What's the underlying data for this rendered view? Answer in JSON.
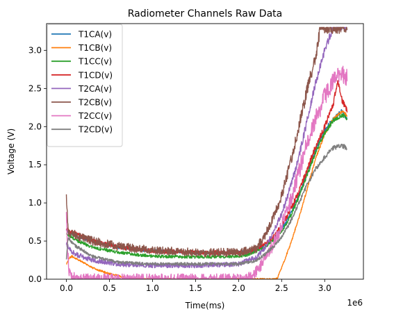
{
  "chart_data": {
    "type": "line",
    "title": "Radiometer Channels Raw Data",
    "xlabel": "Time(ms)",
    "ylabel": "Voltage (V)",
    "x_offset_text": "1e6",
    "xlim": [
      -230000,
      3450000
    ],
    "ylim": [
      0.0,
      3.35
    ],
    "x_ticks": [
      0.0,
      500000,
      1000000,
      1500000,
      2000000,
      2500000,
      3000000
    ],
    "x_tick_labels": [
      "0.0",
      "0.5",
      "1.0",
      "1.5",
      "2.0",
      "2.5",
      "3.0"
    ],
    "y_ticks": [
      0.0,
      0.5,
      1.0,
      1.5,
      2.0,
      2.5,
      3.0
    ],
    "y_tick_labels": [
      "0.0",
      "0.5",
      "1.0",
      "1.5",
      "2.0",
      "2.5",
      "3.0"
    ],
    "grid": false,
    "legend_position": "top-left",
    "series": [
      {
        "name": "T1CA(v)",
        "color": "#1f77b4",
        "noise": 0.03,
        "x": [
          0,
          20000,
          50000,
          100000,
          300000,
          600000,
          1000000,
          1500000,
          2000000,
          2100000,
          2200000,
          2300000,
          2400000,
          2500000,
          2600000,
          2700000,
          2800000,
          2900000,
          3000000,
          3100000,
          3200000,
          3260000
        ],
        "y": [
          0.65,
          0.62,
          0.6,
          0.58,
          0.5,
          0.42,
          0.37,
          0.35,
          0.35,
          0.36,
          0.39,
          0.44,
          0.52,
          0.65,
          0.85,
          1.1,
          1.4,
          1.7,
          1.95,
          2.1,
          2.2,
          2.1
        ]
      },
      {
        "name": "T1CB(v)",
        "color": "#ff7f0e",
        "noise": 0.02,
        "x": [
          0,
          10000,
          30000,
          60000,
          100000,
          200000,
          300000,
          500000,
          700000,
          900000,
          1500000,
          2000000,
          2200000,
          2300000,
          2400000,
          2450000,
          2500000,
          2600000,
          2700000,
          2800000,
          2900000,
          3000000,
          3100000,
          3200000,
          3260000
        ],
        "y": [
          0.2,
          0.22,
          0.27,
          0.3,
          0.28,
          0.22,
          0.15,
          0.07,
          0.02,
          0.0,
          0.0,
          0.0,
          0.0,
          0.0,
          0.0,
          0.01,
          0.15,
          0.45,
          0.8,
          1.2,
          1.6,
          1.9,
          2.1,
          2.2,
          2.15
        ]
      },
      {
        "name": "T1CC(v)",
        "color": "#2ca02c",
        "noise": 0.03,
        "x": [
          0,
          20000,
          50000,
          100000,
          300000,
          600000,
          1000000,
          1500000,
          2000000,
          2100000,
          2200000,
          2300000,
          2400000,
          2500000,
          2600000,
          2700000,
          2800000,
          2900000,
          3000000,
          3100000,
          3200000,
          3260000
        ],
        "y": [
          0.6,
          0.58,
          0.56,
          0.52,
          0.42,
          0.35,
          0.3,
          0.29,
          0.3,
          0.32,
          0.36,
          0.42,
          0.5,
          0.62,
          0.82,
          1.08,
          1.38,
          1.68,
          1.92,
          2.08,
          2.15,
          2.1
        ]
      },
      {
        "name": "T1CD(v)",
        "color": "#d62728",
        "noise": 0.04,
        "x": [
          0,
          20000,
          50000,
          100000,
          300000,
          600000,
          1000000,
          1500000,
          2000000,
          2100000,
          2200000,
          2300000,
          2400000,
          2500000,
          2600000,
          2700000,
          2800000,
          2900000,
          3000000,
          3100000,
          3150000,
          3200000,
          3260000
        ],
        "y": [
          0.65,
          0.64,
          0.62,
          0.6,
          0.5,
          0.42,
          0.37,
          0.35,
          0.35,
          0.36,
          0.4,
          0.46,
          0.55,
          0.7,
          0.9,
          1.15,
          1.45,
          1.75,
          2.0,
          2.3,
          2.6,
          2.35,
          2.2
        ]
      },
      {
        "name": "T2CA(v)",
        "color": "#9467bd",
        "noise": 0.05,
        "x": [
          0,
          20000,
          50000,
          100000,
          300000,
          600000,
          1000000,
          1500000,
          2000000,
          2200000,
          2300000,
          2400000,
          2500000,
          2600000,
          2700000,
          2800000,
          2900000,
          3000000,
          3100000,
          3200000,
          3260000
        ],
        "y": [
          0.45,
          0.43,
          0.38,
          0.33,
          0.25,
          0.2,
          0.18,
          0.18,
          0.2,
          0.28,
          0.4,
          0.6,
          0.85,
          1.2,
          1.6,
          2.1,
          2.6,
          3.0,
          3.3,
          3.3,
          3.3
        ]
      },
      {
        "name": "T2CB(v)",
        "color": "#8c564b",
        "noise": 0.08,
        "x": [
          0,
          20000,
          50000,
          100000,
          300000,
          600000,
          1000000,
          1500000,
          2000000,
          2200000,
          2300000,
          2400000,
          2500000,
          2600000,
          2700000,
          2800000,
          2900000,
          2950000,
          3000000,
          3100000,
          3200000,
          3260000
        ],
        "y": [
          1.1,
          0.62,
          0.6,
          0.58,
          0.5,
          0.43,
          0.38,
          0.35,
          0.35,
          0.4,
          0.55,
          0.8,
          1.1,
          1.5,
          2.0,
          2.5,
          2.95,
          3.3,
          3.3,
          3.3,
          3.3,
          3.3
        ]
      },
      {
        "name": "T2CC(v)",
        "color": "#e377c2",
        "noise": 0.12,
        "x": [
          0,
          10000,
          30000,
          60000,
          100000,
          150000,
          200000,
          2100000,
          2200000,
          2300000,
          2400000,
          2500000,
          2600000,
          2700000,
          2800000,
          2900000,
          3000000,
          3100000,
          3200000,
          3260000
        ],
        "y": [
          0.85,
          0.5,
          0.1,
          0.04,
          0.01,
          0.0,
          0.0,
          0.0,
          0.1,
          0.25,
          0.45,
          0.7,
          1.0,
          1.4,
          1.8,
          2.1,
          2.4,
          2.6,
          2.7,
          2.65
        ]
      },
      {
        "name": "T2CD(v)",
        "color": "#7f7f7f",
        "noise": 0.03,
        "x": [
          0,
          20000,
          50000,
          100000,
          300000,
          600000,
          1000000,
          1500000,
          2000000,
          2200000,
          2300000,
          2400000,
          2500000,
          2600000,
          2700000,
          2800000,
          2900000,
          3000000,
          3100000,
          3200000,
          3260000
        ],
        "y": [
          0.25,
          0.55,
          0.5,
          0.44,
          0.3,
          0.22,
          0.2,
          0.2,
          0.2,
          0.24,
          0.32,
          0.42,
          0.55,
          0.75,
          1.0,
          1.25,
          1.45,
          1.6,
          1.72,
          1.75,
          1.72
        ]
      }
    ]
  }
}
